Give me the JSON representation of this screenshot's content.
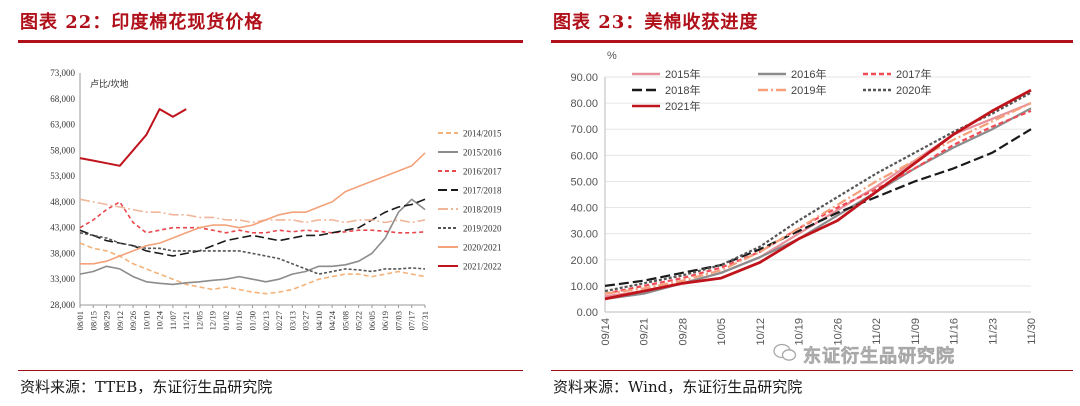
{
  "left": {
    "title": "图表 22：印度棉花现货价格",
    "source": "资料来源：TTEB，东证衍生品研究院",
    "chart_data": {
      "type": "line",
      "ylabel": "卢比/坎地",
      "ylim": [
        28000,
        73000
      ],
      "yticks": [
        "28,000",
        "33,000",
        "38,000",
        "43,000",
        "48,000",
        "53,000",
        "58,000",
        "63,000",
        "68,000",
        "73,000"
      ],
      "x_tick_labels": [
        "08/01",
        "08/15",
        "08/29",
        "09/12",
        "09/26",
        "10/10",
        "10/24",
        "11/07",
        "11/21",
        "12/05",
        "12/19",
        "01/02",
        "01/16",
        "01/30",
        "02/13",
        "02/27",
        "03/13",
        "03/27",
        "04/10",
        "04/24",
        "05/08",
        "05/22",
        "06/05",
        "06/19",
        "07/03",
        "07/17",
        "07/31"
      ],
      "series": [
        {
          "name": "2014/2015",
          "color": "#f4b27a",
          "dash": "5,3",
          "values": [
            40000,
            39000,
            38500,
            37500,
            36000,
            35000,
            34000,
            33000,
            32000,
            31500,
            31000,
            31500,
            31000,
            30500,
            30200,
            30500,
            31000,
            32000,
            33000,
            33500,
            34000,
            34000,
            33500,
            34000,
            34500,
            34000,
            33500
          ]
        },
        {
          "name": "2015/2016",
          "color": "#8c8c8c",
          "dash": "",
          "values": [
            34000,
            34500,
            35500,
            35000,
            33500,
            32500,
            32200,
            32000,
            32300,
            32500,
            32800,
            33000,
            33500,
            33000,
            32500,
            33000,
            34000,
            34500,
            35500,
            35500,
            35800,
            36500,
            38000,
            41000,
            46000,
            48500,
            46500
          ]
        },
        {
          "name": "2016/2017",
          "color": "#e8474d",
          "dash": "4,3",
          "values": [
            43000,
            44500,
            46500,
            48000,
            44000,
            42000,
            42500,
            43000,
            43000,
            43000,
            42500,
            42000,
            42500,
            42000,
            42000,
            42500,
            42200,
            42500,
            42300,
            42000,
            42200,
            42500,
            42500,
            42300,
            42000,
            42000,
            42200
          ]
        },
        {
          "name": "2017/2018",
          "color": "#1a1a1a",
          "dash": "9,4",
          "values": [
            42500,
            41500,
            40500,
            40000,
            39500,
            38500,
            38000,
            37500,
            38000,
            38500,
            39500,
            40500,
            41000,
            41500,
            41000,
            40500,
            41000,
            41500,
            41500,
            42000,
            42500,
            43000,
            44500,
            46000,
            47000,
            47500,
            48500
          ]
        },
        {
          "name": "2018/2019",
          "color": "#f0b69a",
          "dash": "10,3,2,3",
          "values": [
            48500,
            48000,
            47500,
            47000,
            46500,
            46000,
            46000,
            45500,
            45500,
            45000,
            45000,
            44500,
            44500,
            44000,
            44500,
            44500,
            44500,
            44000,
            44500,
            44500,
            44000,
            44500,
            44500,
            44000,
            44500,
            44000,
            44500
          ]
        },
        {
          "name": "2019/2020",
          "color": "#555555",
          "dash": "3,2",
          "values": [
            42000,
            41500,
            41000,
            40000,
            39500,
            39000,
            39000,
            38500,
            38500,
            38500,
            38500,
            38500,
            38500,
            38000,
            37500,
            37000,
            36000,
            35000,
            34000,
            34500,
            35000,
            34800,
            34500,
            35000,
            35000,
            35200,
            35000
          ]
        },
        {
          "name": "2020/2021",
          "color": "#f4a27a",
          "dash": "",
          "values": [
            36000,
            36000,
            36500,
            37500,
            38500,
            39500,
            40000,
            41000,
            42000,
            43000,
            43500,
            43500,
            43000,
            43500,
            44500,
            45500,
            46000,
            46000,
            47000,
            48000,
            50000,
            51000,
            52000,
            53000,
            54000,
            55000,
            57500
          ]
        },
        {
          "name": "2021/2022",
          "color": "#c0141c",
          "dash": "",
          "values": [
            56500,
            56000,
            55500,
            55000,
            58000,
            61000,
            66000,
            64500,
            66000,
            null,
            null,
            null,
            null,
            null,
            null,
            null,
            null,
            null,
            null,
            null,
            null,
            null,
            null,
            null,
            null,
            null,
            null
          ]
        }
      ]
    }
  },
  "right": {
    "title": "图表 23：美棉收获进度",
    "source": "资料来源：Wind，东证衍生品研究院",
    "chart_data": {
      "type": "line",
      "ylabel": "%",
      "ylim": [
        0,
        90
      ],
      "yticks": [
        "0.00",
        "10.00",
        "20.00",
        "30.00",
        "40.00",
        "50.00",
        "60.00",
        "70.00",
        "80.00",
        "90.00"
      ],
      "x_tick_labels": [
        "09/14",
        "09/21",
        "09/28",
        "10/05",
        "10/12",
        "10/19",
        "10/26",
        "11/02",
        "11/09",
        "11/16",
        "11/23",
        "11/30"
      ],
      "series": [
        {
          "name": "2015年",
          "color": "#e8909a",
          "dash": "",
          "values": [
            6,
            8,
            11,
            15,
            21,
            30,
            39,
            48,
            58,
            68,
            74,
            80
          ]
        },
        {
          "name": "2016年",
          "color": "#8c8c8c",
          "dash": "",
          "values": [
            5,
            7,
            11,
            15,
            21,
            28,
            37,
            46,
            55,
            63,
            70,
            78
          ]
        },
        {
          "name": "2017年",
          "color": "#f04a55",
          "dash": "5,3",
          "values": [
            7,
            10,
            13,
            17,
            23,
            32,
            40,
            47,
            55,
            64,
            71,
            77
          ]
        },
        {
          "name": "2018年",
          "color": "#1a1a1a",
          "dash": "10,4",
          "values": [
            10,
            12,
            15,
            18,
            24,
            31,
            38,
            44,
            50,
            55,
            61,
            70
          ]
        },
        {
          "name": "2019年",
          "color": "#f5a07a",
          "dash": "10,3,2,3",
          "values": [
            7,
            9,
            12,
            16,
            23,
            32,
            41,
            50,
            58,
            66,
            73,
            80
          ]
        },
        {
          "name": "2020年",
          "color": "#555555",
          "dash": "3,2",
          "values": [
            8,
            11,
            14,
            18,
            25,
            35,
            44,
            53,
            61,
            69,
            76,
            84
          ]
        },
        {
          "name": "2021年",
          "color": "#c0141c",
          "dash": "",
          "values": [
            5,
            8,
            11,
            13,
            19,
            28,
            35,
            46,
            57,
            68,
            77,
            85
          ]
        }
      ]
    }
  },
  "watermark": "东证衍生品研究院"
}
